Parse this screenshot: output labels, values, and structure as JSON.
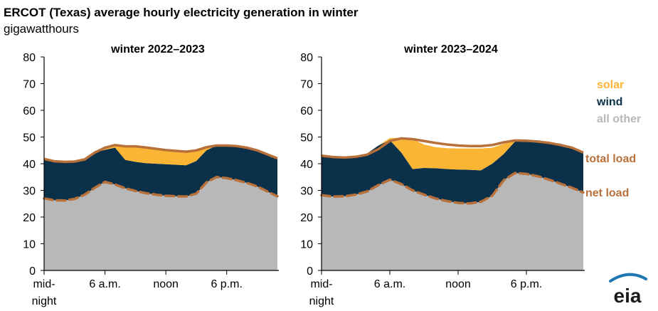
{
  "chart_data": [
    {
      "type": "area",
      "title": "ERCOT (Texas) average hourly electricity generation in winter",
      "ylabel": "gigawatthours",
      "panel_title": "winter 2022–2023",
      "hours": [
        0,
        1,
        2,
        3,
        4,
        5,
        6,
        7,
        8,
        9,
        10,
        11,
        12,
        13,
        14,
        15,
        16,
        17,
        18,
        19,
        20,
        21,
        22,
        23
      ],
      "xtick_labels": [
        "mid-",
        "night",
        "6 a.m.",
        "noon",
        "6 p.m."
      ],
      "ylim": [
        0,
        80
      ],
      "yticks": [
        0,
        10,
        20,
        30,
        40,
        50,
        60,
        70,
        80
      ],
      "series": [
        {
          "name": "all other",
          "values": [
            27.0,
            26.3,
            26.2,
            26.8,
            28.4,
            31.0,
            33.2,
            32.2,
            30.8,
            29.8,
            29.0,
            28.4,
            28.0,
            27.8,
            27.7,
            28.8,
            33.0,
            35.0,
            34.6,
            33.8,
            32.8,
            31.5,
            29.6,
            27.8
          ]
        },
        {
          "name": "wind",
          "values": [
            14.8,
            14.6,
            14.5,
            14.0,
            13.2,
            13.2,
            12.0,
            13.8,
            10.6,
            10.9,
            11.2,
            11.6,
            11.8,
            11.8,
            11.7,
            12.2,
            12.0,
            11.8,
            12.2,
            12.8,
            13.2,
            13.5,
            13.9,
            14.2
          ]
        },
        {
          "name": "solar",
          "values": [
            0,
            0,
            0,
            0,
            0,
            0,
            0.8,
            1.0,
            5.1,
            5.8,
            5.9,
            5.6,
            5.3,
            5.2,
            5.1,
            4.0,
            1.2,
            0,
            0,
            0,
            0,
            0,
            0,
            0
          ]
        }
      ],
      "total_load": [
        41.8,
        40.9,
        40.7,
        40.8,
        41.6,
        44.2,
        46.0,
        47.0,
        46.5,
        46.5,
        46.1,
        45.6,
        45.1,
        44.8,
        44.5,
        45.0,
        46.2,
        46.8,
        46.8,
        46.6,
        46.0,
        45.0,
        43.5,
        42.0
      ],
      "net_load": [
        27.0,
        26.3,
        26.2,
        26.8,
        28.4,
        31.0,
        33.2,
        32.2,
        30.8,
        29.8,
        29.0,
        28.4,
        28.0,
        27.8,
        27.7,
        28.8,
        33.0,
        35.0,
        34.6,
        33.8,
        32.8,
        31.5,
        29.6,
        27.8
      ]
    },
    {
      "type": "area",
      "panel_title": "winter 2023–2024",
      "hours": [
        0,
        1,
        2,
        3,
        4,
        5,
        6,
        7,
        8,
        9,
        10,
        11,
        12,
        13,
        14,
        15,
        16,
        17,
        18,
        19,
        20,
        21,
        22,
        23
      ],
      "xtick_labels": [
        "mid-",
        "night",
        "6 a.m.",
        "noon",
        "6 p.m."
      ],
      "ylim": [
        0,
        80
      ],
      "yticks": [
        0,
        10,
        20,
        30,
        40,
        50,
        60,
        70,
        80
      ],
      "series": [
        {
          "name": "all other",
          "values": [
            28.2,
            27.7,
            27.8,
            28.4,
            29.6,
            32.0,
            34.0,
            32.4,
            30.0,
            28.4,
            27.0,
            26.0,
            25.3,
            25.1,
            25.7,
            28.0,
            33.8,
            36.5,
            36.2,
            35.3,
            34.0,
            32.5,
            31.0,
            29.2
          ]
        },
        {
          "name": "wind",
          "values": [
            14.8,
            14.6,
            14.4,
            14.3,
            14.2,
            14.8,
            14.8,
            11.8,
            8.0,
            10.0,
            11.3,
            12.0,
            12.5,
            12.6,
            11.8,
            12.0,
            9.8,
            11.8,
            12.0,
            12.8,
            13.7,
            15.0,
            15.2,
            14.9
          ]
        },
        {
          "name": "solar",
          "values": [
            0,
            0,
            0,
            0,
            0,
            0,
            0.8,
            5.5,
            11.2,
            8.8,
            7.9,
            7.8,
            7.9,
            8.0,
            8.2,
            6.0,
            3.8,
            0.5,
            0,
            0,
            0,
            0,
            0,
            0
          ]
        }
      ],
      "total_load": [
        43.0,
        42.5,
        42.3,
        42.6,
        43.4,
        45.5,
        48.5,
        49.5,
        49.2,
        48.5,
        47.8,
        47.2,
        46.8,
        46.6,
        46.6,
        47.0,
        48.0,
        48.7,
        48.6,
        48.3,
        47.8,
        47.0,
        46.0,
        44.2
      ],
      "net_load": [
        28.2,
        27.7,
        27.8,
        28.4,
        29.6,
        32.0,
        34.0,
        32.4,
        30.0,
        28.4,
        27.0,
        26.0,
        25.3,
        25.1,
        25.7,
        28.0,
        33.8,
        36.5,
        36.2,
        35.3,
        34.0,
        32.5,
        31.0,
        29.2
      ]
    }
  ],
  "legend": {
    "solar": "solar",
    "wind": "wind",
    "all_other": "all other",
    "total_load": "total load",
    "net_load": "net load"
  },
  "colors": {
    "all_other": "#b8b8b8",
    "wind": "#0b3049",
    "solar": "#fbb534",
    "load": "#b8703a",
    "solar_text": "#fbb534",
    "wind_text": "#0b3049",
    "all_other_text": "#b8b8b8",
    "load_text": "#b8703a",
    "eia_blue": "#1f78b4"
  },
  "logo": {
    "text": "eia"
  }
}
